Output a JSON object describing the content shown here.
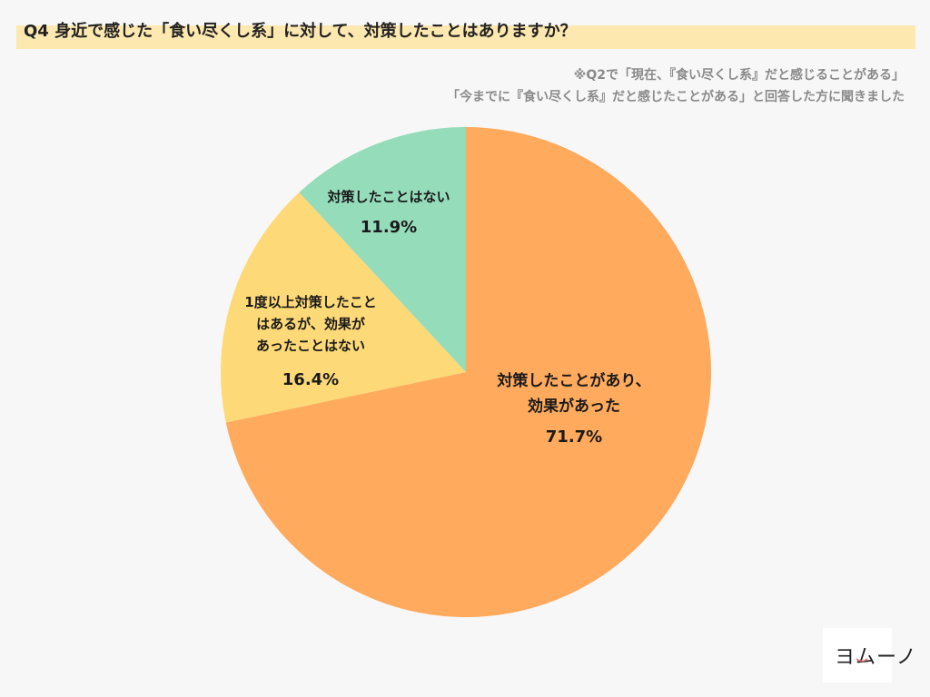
{
  "title": "Q4 身近で感じた「食い尽くし系」に対して、対策したことはありますか？",
  "notes": [
    "※Q2で「現在、『食い尽くし系』だと感じることがある」",
    "「今までに『食い尽くし系』だと感じたことがある」と回答した方に聞きました"
  ],
  "logo_text": "ヨムーノ",
  "chart_data": {
    "type": "pie",
    "start": "12 o'clock",
    "direction": "clockwise",
    "slices": [
      {
        "label_lines": [
          "対策したことがあり、",
          "効果があった"
        ],
        "value": 71.7,
        "value_label": "71.7%",
        "color": "#ffaa5c"
      },
      {
        "label_lines": [
          "1度以上対策したこと",
          "はあるが、効果が",
          "あったことはない"
        ],
        "value": 16.4,
        "value_label": "16.4%",
        "color": "#fdd977"
      },
      {
        "label_lines": [
          "対策したことはない"
        ],
        "value": 11.9,
        "value_label": "11.9%",
        "color": "#95dcbb"
      }
    ]
  }
}
